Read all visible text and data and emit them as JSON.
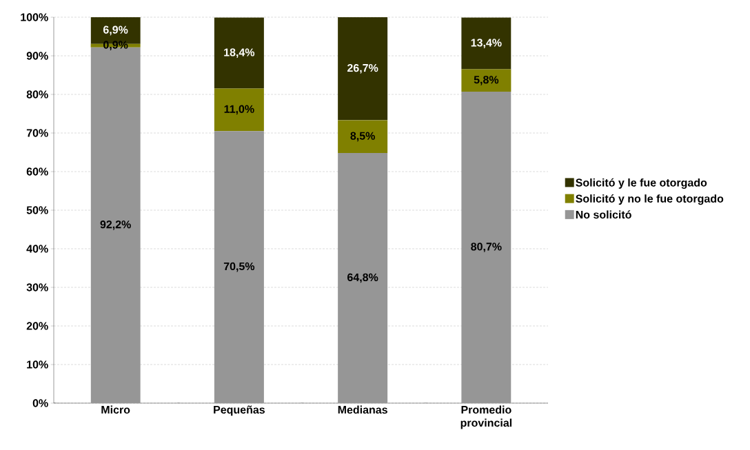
{
  "chart_data": {
    "type": "bar",
    "stacked": true,
    "categories": [
      "Micro",
      "Pequeñas",
      "Medianas",
      "Promedio provincial"
    ],
    "series": [
      {
        "name": "No solicitó",
        "color": "#969696",
        "values": [
          92.2,
          70.5,
          64.8,
          80.7
        ],
        "value_labels": [
          "92,2%",
          "70,5%",
          "64,8%",
          "80,7%"
        ]
      },
      {
        "name": "Solicitó y no le fue otorgado",
        "color": "#808000",
        "values": [
          0.9,
          11.0,
          8.5,
          5.8
        ],
        "value_labels": [
          "0,9%",
          "11,0%",
          "8,5%",
          "5,8%"
        ]
      },
      {
        "name": "Solicitó y le fue otorgado",
        "color": "#333300",
        "values": [
          6.9,
          18.4,
          26.7,
          13.4
        ],
        "value_labels": [
          "6,9%",
          "18,4%",
          "26,7%",
          "13,4%"
        ]
      }
    ],
    "ylim": [
      0,
      100
    ],
    "yticks": [
      {
        "value": 0,
        "label": "0%"
      },
      {
        "value": 10,
        "label": "10%"
      },
      {
        "value": 20,
        "label": "20%"
      },
      {
        "value": 30,
        "label": "30%"
      },
      {
        "value": 40,
        "label": "40%"
      },
      {
        "value": 50,
        "label": "50%"
      },
      {
        "value": 60,
        "label": "60%"
      },
      {
        "value": 70,
        "label": "70%"
      },
      {
        "value": 80,
        "label": "80%"
      },
      {
        "value": 90,
        "label": "90%"
      },
      {
        "value": 100,
        "label": "100%"
      }
    ],
    "grid": "y",
    "legend": "right"
  }
}
